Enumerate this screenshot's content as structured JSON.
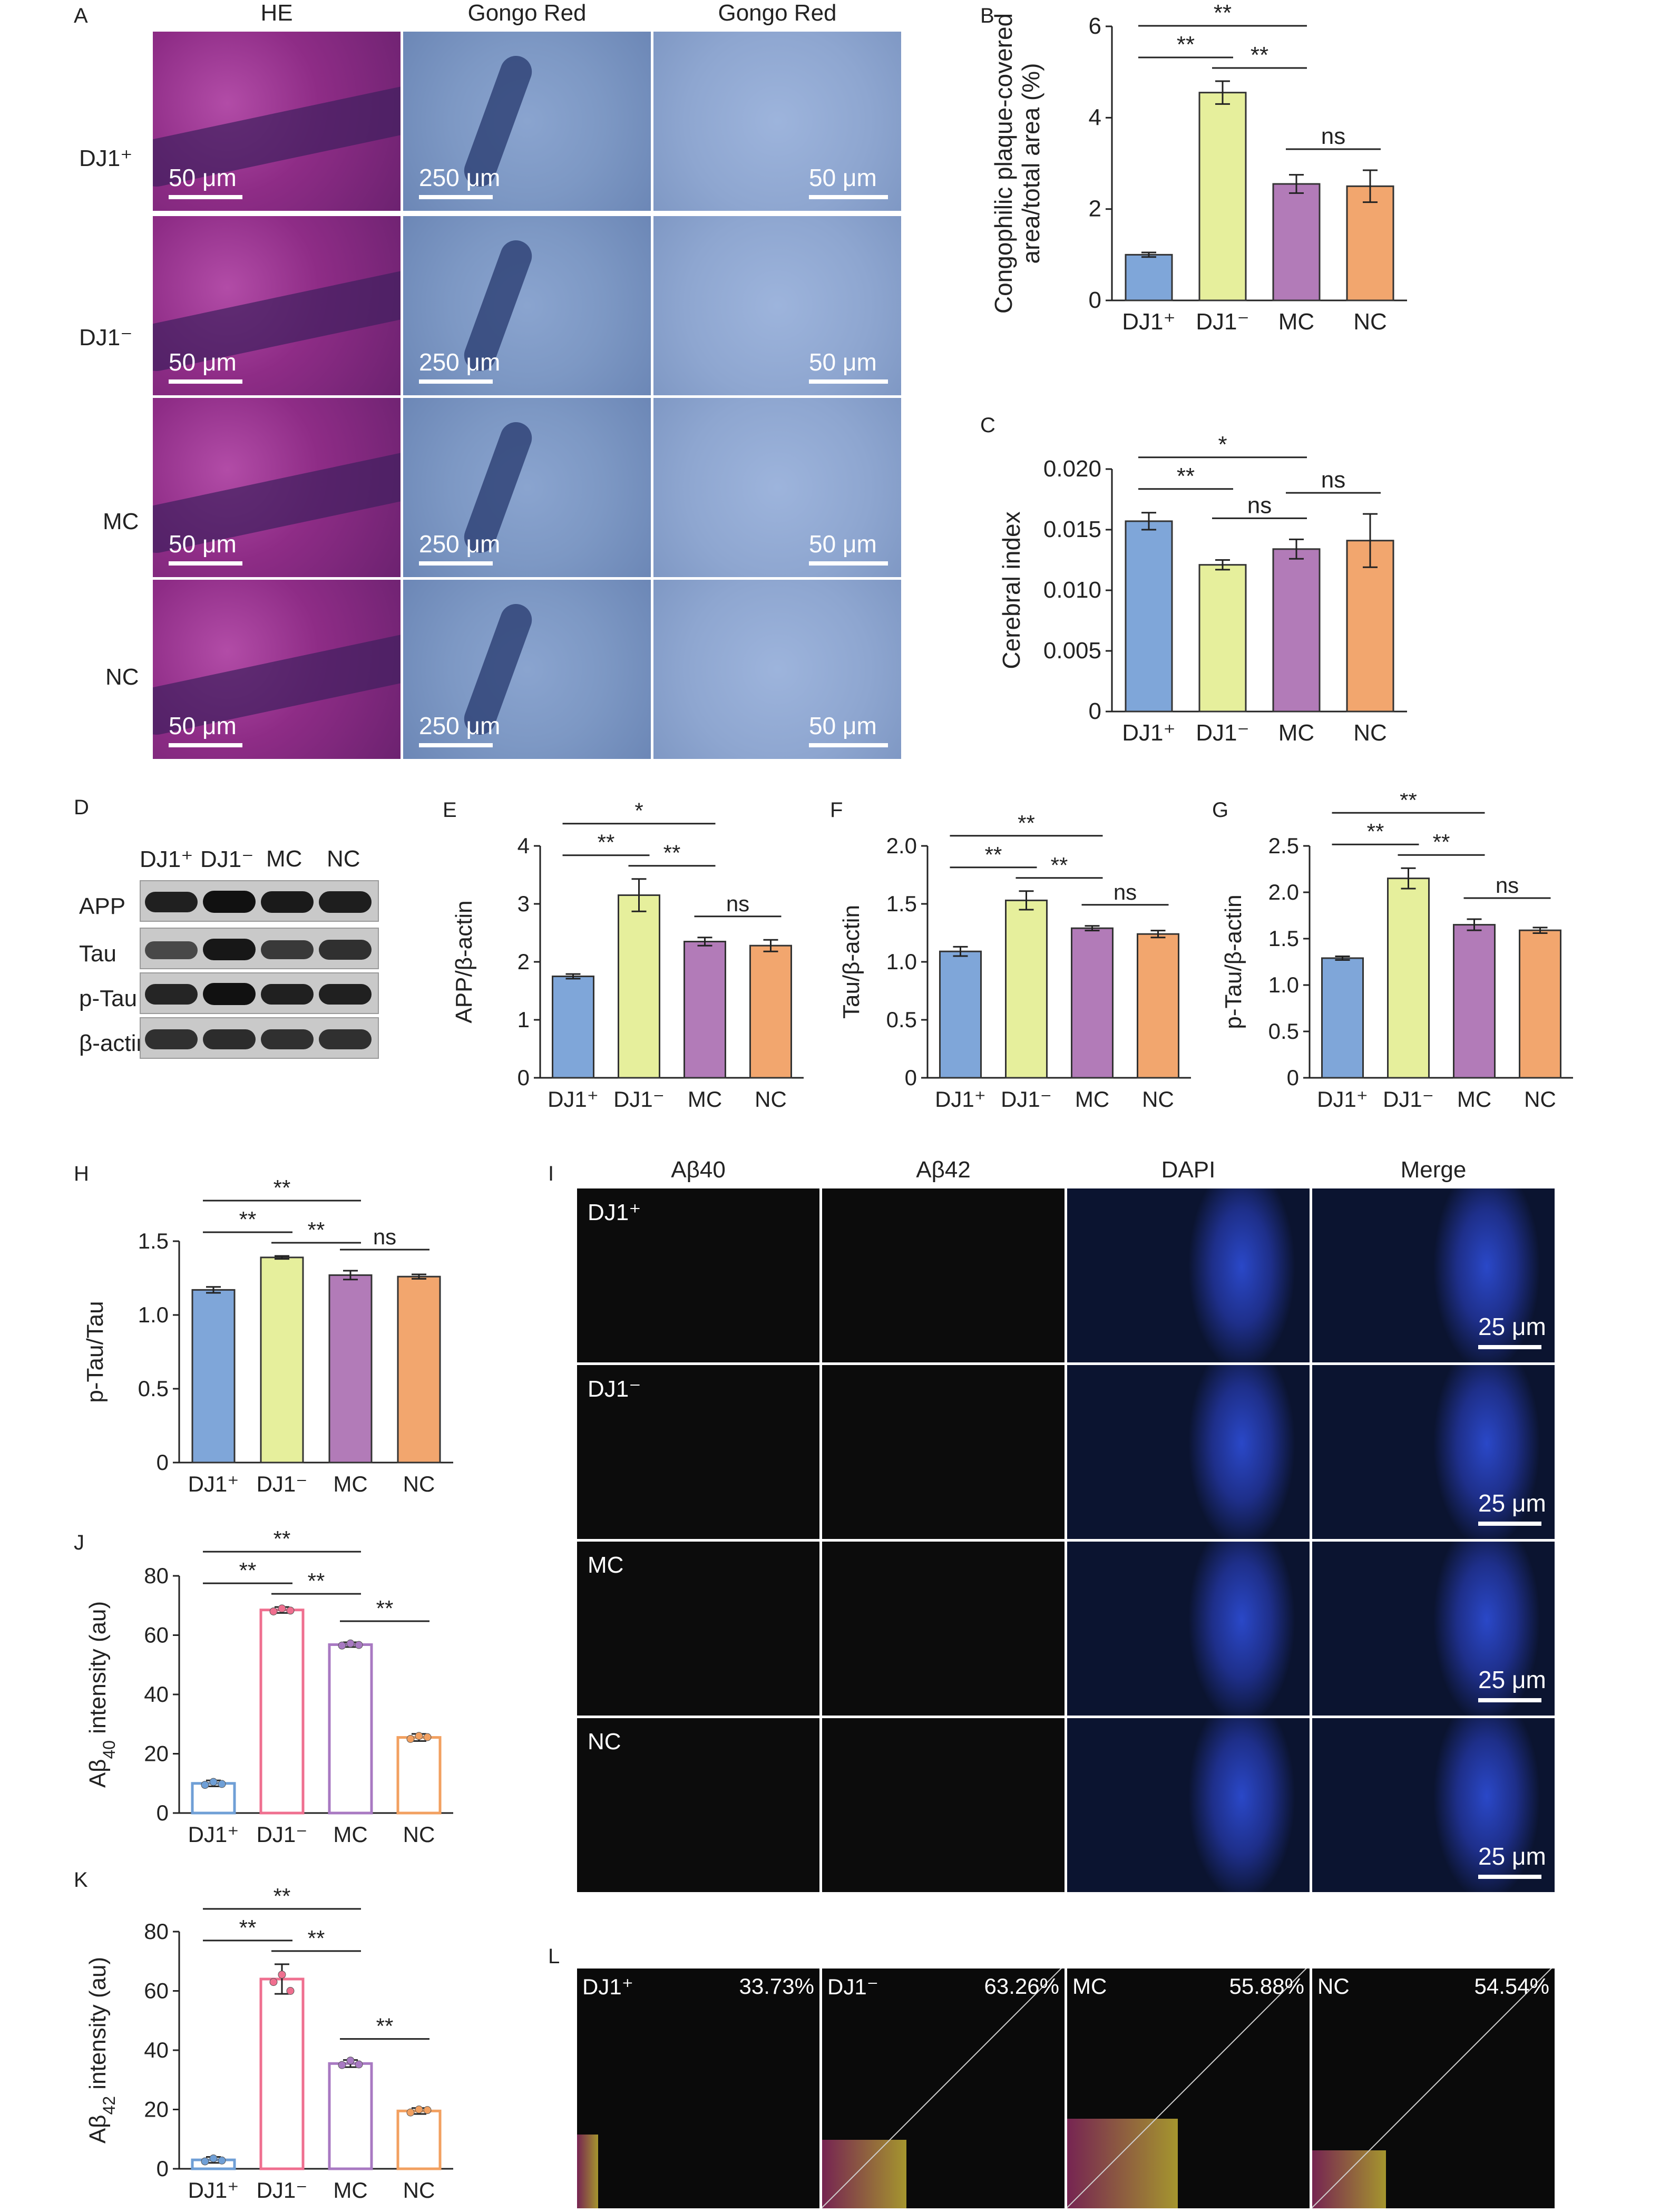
{
  "panel_letters": {
    "A": "A",
    "B": "B",
    "C": "C",
    "D": "D",
    "E": "E",
    "F": "F",
    "G": "G",
    "H": "H",
    "I": "I",
    "J": "J",
    "K": "K",
    "L": "L"
  },
  "groups": [
    "DJ1⁺",
    "DJ1⁻",
    "MC",
    "NC"
  ],
  "group_colors": [
    "#7fa6d9",
    "#e6ef9c",
    "#b27bb8",
    "#f2a66e"
  ],
  "outline_colors": [
    "#6f9fd6",
    "#ef6f8f",
    "#a879c2",
    "#f2a060"
  ],
  "histo": {
    "columns": [
      "HE",
      "Gongo Red",
      "Gongo Red"
    ],
    "rows": [
      "DJ1⁺",
      "DJ1⁻",
      "MC",
      "NC"
    ],
    "scale_labels": [
      "50 μm",
      "250 μm",
      "50 μm"
    ]
  },
  "western": {
    "header": [
      "DJ1⁺",
      "DJ1⁻",
      "MC",
      "NC"
    ],
    "bands": [
      "APP",
      "Tau",
      "p-Tau",
      "β-actin"
    ]
  },
  "fluorescence": {
    "columns": [
      "Aβ40",
      "Aβ42",
      "DAPI",
      "Merge"
    ],
    "rows": [
      "DJ1⁺",
      "DJ1⁻",
      "MC",
      "NC"
    ],
    "scale_label": "25 μm"
  },
  "colocalization": {
    "items": [
      {
        "label": "DJ1⁺",
        "percent": "33.73%"
      },
      {
        "label": "DJ1⁻",
        "percent": "63.26%"
      },
      {
        "label": "MC",
        "percent": "55.88%"
      },
      {
        "label": "NC",
        "percent": "54.54%"
      }
    ]
  },
  "chart_data": [
    {
      "id": "B",
      "type": "bar",
      "categories": [
        "DJ1⁺",
        "DJ1⁻",
        "MC",
        "NC"
      ],
      "values": [
        1.0,
        4.55,
        2.55,
        2.5
      ],
      "errors": [
        0.05,
        0.25,
        0.2,
        0.35
      ],
      "ylabel_lines": [
        "Congophilic plaque-covered",
        "area/total area (%)"
      ],
      "ylim": [
        0,
        6
      ],
      "yticks": [
        "0",
        "2",
        "4",
        "6"
      ],
      "ytick_values": [
        0,
        2,
        4,
        6
      ],
      "sig": [
        {
          "from": 0,
          "to": 1,
          "label": "**"
        },
        {
          "from": 1,
          "to": 2,
          "label": "**"
        },
        {
          "from": 0,
          "to": 2,
          "label": "**"
        },
        {
          "from": 2,
          "to": 3,
          "label": "ns"
        }
      ]
    },
    {
      "id": "C",
      "type": "bar",
      "categories": [
        "DJ1⁺",
        "DJ1⁻",
        "MC",
        "NC"
      ],
      "values": [
        0.0157,
        0.0121,
        0.0134,
        0.0141
      ],
      "errors": [
        0.0007,
        0.0004,
        0.0008,
        0.0022
      ],
      "ylabel_lines": [
        "Cerebral index"
      ],
      "ylim": [
        0,
        0.02
      ],
      "yticks": [
        "0",
        "0.005",
        "0.010",
        "0.015",
        "0.020"
      ],
      "ytick_values": [
        0,
        0.005,
        0.01,
        0.015,
        0.02
      ],
      "sig": [
        {
          "from": 0,
          "to": 1,
          "label": "**"
        },
        {
          "from": 0,
          "to": 2,
          "label": "*"
        },
        {
          "from": 1,
          "to": 2,
          "label": "ns"
        },
        {
          "from": 2,
          "to": 3,
          "label": "ns"
        }
      ]
    },
    {
      "id": "E",
      "type": "bar",
      "categories": [
        "DJ1⁺",
        "DJ1⁻",
        "MC",
        "NC"
      ],
      "values": [
        1.75,
        3.15,
        2.35,
        2.28
      ],
      "errors": [
        0.04,
        0.28,
        0.07,
        0.1
      ],
      "ylabel_lines": [
        "APP/β-actin"
      ],
      "ylim": [
        0,
        4
      ],
      "yticks": [
        "0",
        "1",
        "2",
        "3",
        "4"
      ],
      "ytick_values": [
        0,
        1,
        2,
        3,
        4
      ],
      "sig": [
        {
          "from": 0,
          "to": 1,
          "label": "**"
        },
        {
          "from": 1,
          "to": 2,
          "label": "**"
        },
        {
          "from": 0,
          "to": 2,
          "label": "*"
        },
        {
          "from": 2,
          "to": 3,
          "label": "ns"
        }
      ]
    },
    {
      "id": "F",
      "type": "bar",
      "categories": [
        "DJ1⁺",
        "DJ1⁻",
        "MC",
        "NC"
      ],
      "values": [
        1.09,
        1.53,
        1.29,
        1.24
      ],
      "errors": [
        0.04,
        0.08,
        0.02,
        0.03
      ],
      "ylabel_lines": [
        "Tau/β-actin"
      ],
      "ylim": [
        0,
        2
      ],
      "yticks": [
        "0",
        "0.5",
        "1.0",
        "1.5",
        "2.0"
      ],
      "ytick_values": [
        0,
        0.5,
        1,
        1.5,
        2
      ],
      "sig": [
        {
          "from": 0,
          "to": 1,
          "label": "**"
        },
        {
          "from": 1,
          "to": 2,
          "label": "**"
        },
        {
          "from": 0,
          "to": 2,
          "label": "**"
        },
        {
          "from": 2,
          "to": 3,
          "label": "ns"
        }
      ]
    },
    {
      "id": "G",
      "type": "bar",
      "categories": [
        "DJ1⁺",
        "DJ1⁻",
        "MC",
        "NC"
      ],
      "values": [
        1.29,
        2.15,
        1.65,
        1.59
      ],
      "errors": [
        0.02,
        0.11,
        0.06,
        0.03
      ],
      "ylabel_lines": [
        "p-Tau/β-actin"
      ],
      "ylim": [
        0,
        2.5
      ],
      "yticks": [
        "0",
        "0.5",
        "1.0",
        "1.5",
        "2.0",
        "2.5"
      ],
      "ytick_values": [
        0,
        0.5,
        1,
        1.5,
        2,
        2.5
      ],
      "sig": [
        {
          "from": 0,
          "to": 1,
          "label": "**"
        },
        {
          "from": 1,
          "to": 2,
          "label": "**"
        },
        {
          "from": 0,
          "to": 2,
          "label": "**"
        },
        {
          "from": 2,
          "to": 3,
          "label": "ns"
        }
      ]
    },
    {
      "id": "H",
      "type": "bar",
      "categories": [
        "DJ1⁺",
        "DJ1⁻",
        "MC",
        "NC"
      ],
      "values": [
        1.17,
        1.39,
        1.27,
        1.26
      ],
      "errors": [
        0.02,
        0.01,
        0.03,
        0.015
      ],
      "ylabel_lines": [
        "p-Tau/Tau"
      ],
      "ylim": [
        0,
        1.5
      ],
      "yticks": [
        "0",
        "0.5",
        "1.0",
        "1.5"
      ],
      "ytick_values": [
        0,
        0.5,
        1,
        1.5
      ],
      "sig": [
        {
          "from": 0,
          "to": 1,
          "label": "**"
        },
        {
          "from": 1,
          "to": 2,
          "label": "**"
        },
        {
          "from": 0,
          "to": 2,
          "label": "**"
        },
        {
          "from": 2,
          "to": 3,
          "label": "ns"
        }
      ]
    },
    {
      "id": "J",
      "type": "bar_outline",
      "categories": [
        "DJ1⁺",
        "DJ1⁻",
        "MC",
        "NC"
      ],
      "values": [
        10,
        68.5,
        56.8,
        25.5
      ],
      "errors": [
        1,
        1,
        0.8,
        1.2
      ],
      "points": [
        [
          9.5,
          10.5,
          9.8
        ],
        [
          68,
          69,
          68.3
        ],
        [
          56.5,
          57.2,
          56.7
        ],
        [
          25,
          26,
          25.6
        ]
      ],
      "ylabel_main": "Aβ",
      "ylabel_sub": "40",
      "ylabel_rest": " intensity (au)",
      "ylim": [
        0,
        80
      ],
      "yticks": [
        "0",
        "20",
        "40",
        "60",
        "80"
      ],
      "ytick_values": [
        0,
        20,
        40,
        60,
        80
      ],
      "sig": [
        {
          "from": 0,
          "to": 1,
          "label": "**"
        },
        {
          "from": 1,
          "to": 2,
          "label": "**"
        },
        {
          "from": 0,
          "to": 2,
          "label": "**"
        },
        {
          "from": 2,
          "to": 3,
          "label": "**"
        }
      ]
    },
    {
      "id": "K",
      "type": "bar_outline",
      "categories": [
        "DJ1⁺",
        "DJ1⁻",
        "MC",
        "NC"
      ],
      "values": [
        3,
        64,
        35.5,
        19.5
      ],
      "errors": [
        1,
        5,
        1.2,
        1
      ],
      "points": [
        [
          2.5,
          3.5,
          2.8
        ],
        [
          63,
          65.5,
          60
        ],
        [
          35,
          36.5,
          35.2
        ],
        [
          19,
          20,
          19.8
        ]
      ],
      "ylabel_main": "Aβ",
      "ylabel_sub": "42",
      "ylabel_rest": " intensity (au)",
      "ylim": [
        0,
        80
      ],
      "yticks": [
        "0",
        "20",
        "40",
        "60",
        "80"
      ],
      "ytick_values": [
        0,
        20,
        40,
        60,
        80
      ],
      "sig": [
        {
          "from": 0,
          "to": 1,
          "label": "**"
        },
        {
          "from": 1,
          "to": 2,
          "label": "**"
        },
        {
          "from": 0,
          "to": 2,
          "label": "**"
        },
        {
          "from": 2,
          "to": 3,
          "label": "**"
        }
      ]
    }
  ]
}
